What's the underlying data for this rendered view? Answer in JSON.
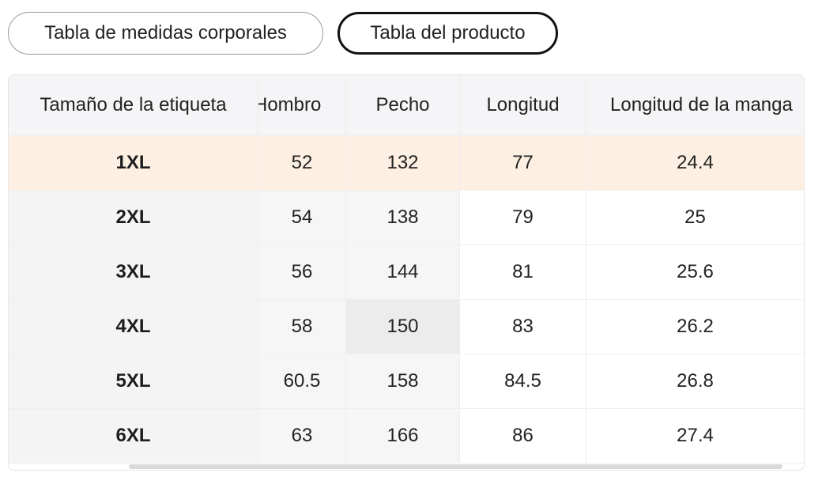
{
  "tabs": [
    {
      "label": "Tabla de medidas corporales",
      "active": false
    },
    {
      "label": "Tabla del producto",
      "active": true
    }
  ],
  "table": {
    "headers": [
      "Tamaño de la etiqueta",
      "Hombro",
      "Pecho",
      "Longitud",
      "Longitud de la manga"
    ],
    "rows": [
      [
        "1XL",
        "52",
        "132",
        "77",
        "24.4"
      ],
      [
        "2XL",
        "54",
        "138",
        "79",
        "25"
      ],
      [
        "3XL",
        "56",
        "144",
        "81",
        "25.6"
      ],
      [
        "4XL",
        "58",
        "150",
        "83",
        "26.2"
      ],
      [
        "5XL",
        "60.5",
        "158",
        "84.5",
        "26.8"
      ],
      [
        "6XL",
        "63",
        "166",
        "86",
        "27.4"
      ]
    ],
    "highlighted_row": 0
  },
  "colors": {
    "highlight_row": "#fdf0e2",
    "header_bg": "#f5f5f7",
    "active_tab_border": "#111111"
  }
}
